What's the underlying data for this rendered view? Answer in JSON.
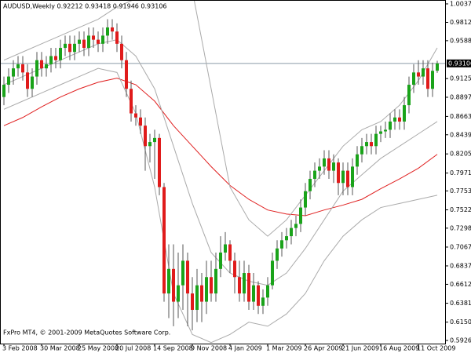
{
  "chart_data": {
    "type": "candlestick",
    "title": "AUDUSD,Weekly  0.92212 0.93418 0.91946 0.93106",
    "footer": "FxPro MT4, © 2001-2009 MetaQuotes Software Corp.",
    "categories": [
      "3 Feb 2008",
      null,
      null,
      null,
      null,
      null,
      null,
      null,
      "30 Mar 2008",
      null,
      null,
      null,
      null,
      null,
      null,
      null,
      "25 May 2008",
      null,
      null,
      null,
      null,
      null,
      null,
      null,
      "20 Jul 2008",
      null,
      null,
      null,
      null,
      null,
      null,
      null,
      "14 Sep 2008",
      null,
      null,
      null,
      null,
      null,
      null,
      null,
      "9 Nov 2008",
      null,
      null,
      null,
      null,
      null,
      null,
      null,
      "4 Jan 2009",
      null,
      null,
      null,
      null,
      null,
      null,
      null,
      "1 Mar 2009",
      null,
      null,
      null,
      null,
      null,
      null,
      null,
      "26 Apr 2009",
      null,
      null,
      null,
      null,
      null,
      null,
      null,
      "21 Jun 2009",
      null,
      null,
      null,
      null,
      null,
      null,
      null,
      "16 Aug 2009",
      null,
      null,
      null,
      null,
      null,
      null,
      null,
      "11 Oct 2009",
      null,
      null,
      null,
      null
    ],
    "ohlc": [
      [
        0.89,
        0.915,
        0.88,
        0.905
      ],
      [
        0.905,
        0.925,
        0.895,
        0.915
      ],
      [
        0.915,
        0.935,
        0.905,
        0.925
      ],
      [
        0.925,
        0.94,
        0.915,
        0.93
      ],
      [
        0.93,
        0.94,
        0.91,
        0.92
      ],
      [
        0.92,
        0.93,
        0.89,
        0.9
      ],
      [
        0.9,
        0.925,
        0.89,
        0.915
      ],
      [
        0.915,
        0.945,
        0.905,
        0.935
      ],
      [
        0.935,
        0.945,
        0.915,
        0.925
      ],
      [
        0.925,
        0.94,
        0.915,
        0.93
      ],
      [
        0.93,
        0.95,
        0.92,
        0.94
      ],
      [
        0.94,
        0.95,
        0.925,
        0.935
      ],
      [
        0.935,
        0.96,
        0.925,
        0.95
      ],
      [
        0.95,
        0.965,
        0.94,
        0.955
      ],
      [
        0.955,
        0.965,
        0.935,
        0.945
      ],
      [
        0.945,
        0.965,
        0.935,
        0.955
      ],
      [
        0.955,
        0.97,
        0.945,
        0.96
      ],
      [
        0.96,
        0.97,
        0.94,
        0.95
      ],
      [
        0.95,
        0.975,
        0.94,
        0.965
      ],
      [
        0.965,
        0.975,
        0.95,
        0.96
      ],
      [
        0.96,
        0.97,
        0.945,
        0.955
      ],
      [
        0.955,
        0.975,
        0.945,
        0.965
      ],
      [
        0.965,
        0.985,
        0.955,
        0.975
      ],
      [
        0.975,
        0.985,
        0.96,
        0.97
      ],
      [
        0.97,
        0.98,
        0.945,
        0.955
      ],
      [
        0.955,
        0.965,
        0.925,
        0.935
      ],
      [
        0.935,
        0.945,
        0.89,
        0.9
      ],
      [
        0.9,
        0.91,
        0.86,
        0.87
      ],
      [
        0.87,
        0.88,
        0.855,
        0.865
      ],
      [
        0.865,
        0.875,
        0.845,
        0.855
      ],
      [
        0.855,
        0.865,
        0.8,
        0.83
      ],
      [
        0.83,
        0.845,
        0.81,
        0.835
      ],
      [
        0.835,
        0.85,
        0.79,
        0.84
      ],
      [
        0.84,
        0.845,
        0.77,
        0.78
      ],
      [
        0.78,
        0.785,
        0.64,
        0.65
      ],
      [
        0.65,
        0.71,
        0.62,
        0.68
      ],
      [
        0.68,
        0.71,
        0.61,
        0.64
      ],
      [
        0.64,
        0.7,
        0.62,
        0.66
      ],
      [
        0.66,
        0.71,
        0.63,
        0.69
      ],
      [
        0.69,
        0.7,
        0.61,
        0.65
      ],
      [
        0.65,
        0.67,
        0.605,
        0.63
      ],
      [
        0.63,
        0.68,
        0.615,
        0.66
      ],
      [
        0.66,
        0.675,
        0.615,
        0.64
      ],
      [
        0.64,
        0.69,
        0.625,
        0.67
      ],
      [
        0.67,
        0.69,
        0.64,
        0.65
      ],
      [
        0.65,
        0.7,
        0.64,
        0.68
      ],
      [
        0.68,
        0.72,
        0.67,
        0.7
      ],
      [
        0.7,
        0.725,
        0.69,
        0.71
      ],
      [
        0.71,
        0.715,
        0.675,
        0.69
      ],
      [
        0.69,
        0.7,
        0.65,
        0.67
      ],
      [
        0.67,
        0.69,
        0.64,
        0.65
      ],
      [
        0.65,
        0.69,
        0.64,
        0.675
      ],
      [
        0.675,
        0.685,
        0.63,
        0.64
      ],
      [
        0.64,
        0.675,
        0.63,
        0.66
      ],
      [
        0.66,
        0.665,
        0.625,
        0.635
      ],
      [
        0.635,
        0.655,
        0.625,
        0.645
      ],
      [
        0.645,
        0.67,
        0.635,
        0.66
      ],
      [
        0.66,
        0.7,
        0.655,
        0.69
      ],
      [
        0.69,
        0.715,
        0.68,
        0.705
      ],
      [
        0.705,
        0.725,
        0.695,
        0.715
      ],
      [
        0.715,
        0.73,
        0.705,
        0.72
      ],
      [
        0.72,
        0.74,
        0.71,
        0.73
      ],
      [
        0.73,
        0.745,
        0.72,
        0.735
      ],
      [
        0.735,
        0.765,
        0.725,
        0.755
      ],
      [
        0.755,
        0.785,
        0.745,
        0.775
      ],
      [
        0.775,
        0.8,
        0.765,
        0.79
      ],
      [
        0.79,
        0.81,
        0.78,
        0.8
      ],
      [
        0.8,
        0.815,
        0.79,
        0.805
      ],
      [
        0.805,
        0.825,
        0.795,
        0.815
      ],
      [
        0.815,
        0.825,
        0.79,
        0.8
      ],
      [
        0.8,
        0.82,
        0.785,
        0.81
      ],
      [
        0.81,
        0.815,
        0.77,
        0.785
      ],
      [
        0.785,
        0.81,
        0.77,
        0.8
      ],
      [
        0.8,
        0.81,
        0.77,
        0.78
      ],
      [
        0.78,
        0.815,
        0.77,
        0.805
      ],
      [
        0.805,
        0.83,
        0.795,
        0.82
      ],
      [
        0.82,
        0.84,
        0.81,
        0.83
      ],
      [
        0.83,
        0.845,
        0.82,
        0.835
      ],
      [
        0.835,
        0.845,
        0.82,
        0.83
      ],
      [
        0.83,
        0.855,
        0.82,
        0.845
      ],
      [
        0.845,
        0.855,
        0.835,
        0.848
      ],
      [
        0.848,
        0.86,
        0.84,
        0.85
      ],
      [
        0.85,
        0.87,
        0.84,
        0.86
      ],
      [
        0.86,
        0.875,
        0.85,
        0.865
      ],
      [
        0.865,
        0.875,
        0.85,
        0.86
      ],
      [
        0.86,
        0.89,
        0.85,
        0.88
      ],
      [
        0.88,
        0.915,
        0.87,
        0.905
      ],
      [
        0.905,
        0.93,
        0.895,
        0.92
      ],
      [
        0.92,
        0.935,
        0.905,
        0.915
      ],
      [
        0.915,
        0.935,
        0.905,
        0.925
      ],
      [
        0.925,
        0.935,
        0.89,
        0.9
      ],
      [
        0.9,
        0.932,
        0.89,
        0.922
      ],
      [
        0.92212,
        0.93418,
        0.91946,
        0.93106
      ]
    ],
    "up_color": "#1aa31a",
    "down_color": "#e01b1b",
    "wick_color": "#555555",
    "overlays": [
      {
        "color": "#e02020",
        "x": [
          0,
          4,
          8,
          12,
          16,
          20,
          24,
          28,
          32,
          36,
          40,
          44,
          48,
          52,
          56,
          60,
          64,
          68,
          72,
          76,
          80,
          84,
          88,
          92
        ],
        "values": [
          0.855,
          0.865,
          0.878,
          0.89,
          0.9,
          0.908,
          0.913,
          0.905,
          0.885,
          0.855,
          0.83,
          0.805,
          0.782,
          0.765,
          0.752,
          0.747,
          0.745,
          0.752,
          0.758,
          0.765,
          0.778,
          0.79,
          0.803,
          0.82
        ]
      },
      {
        "color": "#aaaaaa",
        "x": [
          0,
          4,
          8,
          12,
          16,
          20,
          24,
          28,
          32,
          36,
          40,
          44,
          48,
          52,
          56,
          60,
          64,
          68,
          72,
          76,
          80,
          84,
          88,
          92
        ],
        "values": [
          0.905,
          0.915,
          0.925,
          0.935,
          0.945,
          0.955,
          0.96,
          0.94,
          0.9,
          0.83,
          0.76,
          0.7,
          0.675,
          0.665,
          0.66,
          0.675,
          0.705,
          0.74,
          0.775,
          0.795,
          0.815,
          0.83,
          0.845,
          0.86
        ]
      },
      {
        "color": "#aaaaaa",
        "x": [
          0,
          4,
          8,
          12,
          16,
          20,
          24,
          28,
          32,
          36,
          40,
          44,
          48,
          52,
          56,
          60,
          64,
          68,
          72,
          76,
          80,
          84,
          88,
          92
        ],
        "values": [
          0.935,
          0.945,
          0.955,
          0.965,
          0.975,
          0.985,
          1.0,
          1.01,
          1.04,
          1.05,
          1.02,
          0.9,
          0.78,
          0.74,
          0.72,
          0.74,
          0.77,
          0.8,
          0.83,
          0.85,
          0.86,
          0.88,
          0.91,
          0.95
        ]
      },
      {
        "color": "#aaaaaa",
        "x": [
          0,
          4,
          8,
          12,
          16,
          20,
          24,
          28,
          32,
          36,
          40,
          44,
          48,
          52,
          56,
          60,
          64,
          68,
          72,
          76,
          80,
          84,
          88,
          92
        ],
        "values": [
          0.875,
          0.885,
          0.895,
          0.905,
          0.915,
          0.925,
          0.92,
          0.87,
          0.78,
          0.65,
          0.6,
          0.59,
          0.6,
          0.615,
          0.61,
          0.625,
          0.65,
          0.69,
          0.72,
          0.74,
          0.755,
          0.76,
          0.765,
          0.77
        ]
      }
    ],
    "ylim": [
      0.5888,
      1.0085
    ],
    "yticks": [
      {
        "value": 1.00375,
        "label": "1.00375"
      },
      {
        "value": 0.9812,
        "label": "0.98120"
      },
      {
        "value": 0.9588,
        "label": "0.95880"
      },
      {
        "value": 0.9125,
        "label": "0.91250"
      },
      {
        "value": 0.8897,
        "label": "0.88970"
      },
      {
        "value": 0.8663,
        "label": "0.86630"
      },
      {
        "value": 0.8439,
        "label": "0.84390"
      },
      {
        "value": 0.8205,
        "label": "0.82050"
      },
      {
        "value": 0.7971,
        "label": "0.79710"
      },
      {
        "value": 0.7753,
        "label": "0.77530"
      },
      {
        "value": 0.7522,
        "label": "0.75220"
      },
      {
        "value": 0.7298,
        "label": "0.72980"
      },
      {
        "value": 0.7067,
        "label": "0.70670"
      },
      {
        "value": 0.6837,
        "label": "0.68370"
      },
      {
        "value": 0.6612,
        "label": "0.66120"
      },
      {
        "value": 0.6381,
        "label": "0.63810"
      },
      {
        "value": 0.615,
        "label": "0.61500"
      },
      {
        "value": 0.5926,
        "label": "0.59260"
      }
    ],
    "last_price": {
      "value": 0.93106,
      "label": "0.93106"
    }
  }
}
